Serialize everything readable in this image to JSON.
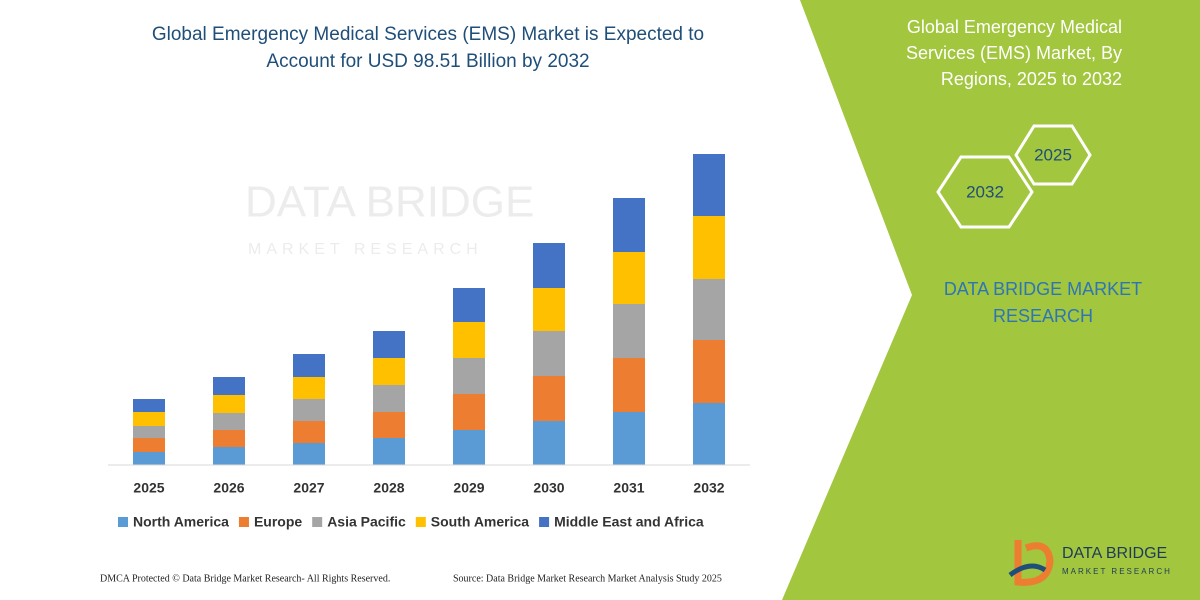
{
  "chart_data": {
    "type": "stacked_bar",
    "title": "Global Emergency Medical Services (EMS) Market is Expected to Account for USD 98.51 Billion by 2032",
    "categories": [
      "2025",
      "2026",
      "2027",
      "2028",
      "2029",
      "2030",
      "2031",
      "2032"
    ],
    "series": [
      {
        "name": "North America",
        "color": "#5b9bd5",
        "values": [
          13,
          18,
          22,
          27,
          35,
          44,
          53,
          62
        ]
      },
      {
        "name": "Europe",
        "color": "#ed7d31",
        "values": [
          14,
          17,
          22,
          26,
          36,
          45,
          54,
          63
        ]
      },
      {
        "name": "Asia Pacific",
        "color": "#a5a5a5",
        "values": [
          12,
          17,
          22,
          27,
          36,
          45,
          54,
          61
        ]
      },
      {
        "name": "South America",
        "color": "#ffc000",
        "values": [
          14,
          18,
          22,
          27,
          36,
          43,
          52,
          63
        ]
      },
      {
        "name": "Middle East and Africa",
        "color": "#4472c4",
        "values": [
          13,
          18,
          23,
          27,
          34,
          45,
          54,
          62
        ]
      }
    ],
    "legend": "bottom"
  },
  "side_panel": {
    "title": "Global Emergency Medical Services (EMS) Market, By Regions, 2025 to 2032",
    "hex_small": "2025",
    "hex_large": "2032",
    "brand": "DATA BRIDGE MARKET RESEARCH"
  },
  "watermark": {
    "name": "DATA BRIDGE",
    "tagline": "MARKET RESEARCH"
  },
  "logo": {
    "name": "DATA BRIDGE",
    "tagline": "MARKET RESEARCH"
  },
  "footer": {
    "left": "DMCA Protected © Data Bridge Market Research- All Rights Reserved.",
    "right": "Source: Data Bridge Market Research Market Analysis Study 2025"
  }
}
